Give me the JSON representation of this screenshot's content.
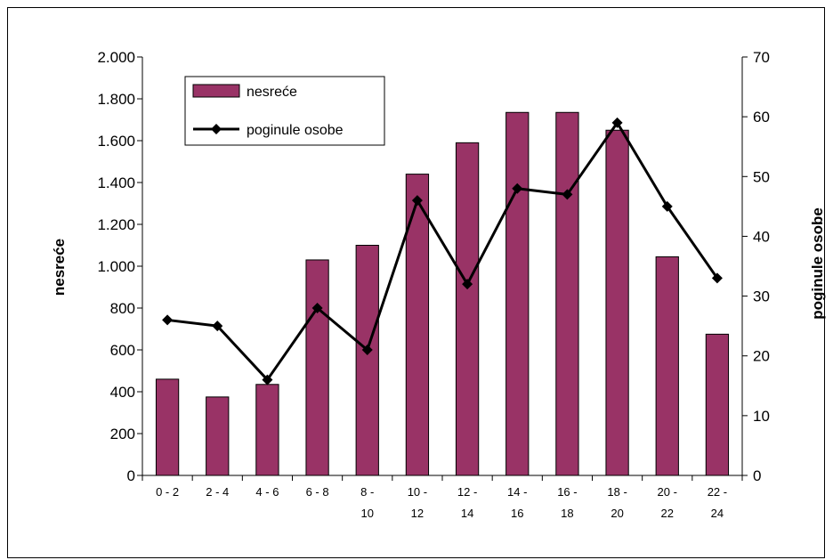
{
  "chart_data": {
    "type": "bar",
    "categories": [
      [
        "0 - 2",
        ""
      ],
      [
        "2 - 4",
        ""
      ],
      [
        "4 - 6",
        ""
      ],
      [
        "6 - 8",
        ""
      ],
      [
        "8 -",
        "10"
      ],
      [
        "10 -",
        "12"
      ],
      [
        "12 -",
        "14"
      ],
      [
        "14 -",
        "16"
      ],
      [
        "16 -",
        "18"
      ],
      [
        "18 -",
        "20"
      ],
      [
        "20 -",
        "22"
      ],
      [
        "22 -",
        "24"
      ]
    ],
    "series": [
      {
        "name": "nesreće",
        "type": "bar",
        "axis": "left",
        "color": "#993366",
        "values": [
          460,
          375,
          435,
          1030,
          1100,
          1440,
          1590,
          1735,
          1735,
          1650,
          1045,
          675
        ]
      },
      {
        "name": "poginule osobe",
        "type": "line",
        "axis": "right",
        "color": "#000000",
        "values": [
          26,
          25,
          16,
          28,
          21,
          46,
          32,
          48,
          47,
          59,
          45,
          33
        ]
      }
    ],
    "ylabel": "nesreće",
    "y2label": "poginule osobe",
    "ylim": [
      0,
      2000
    ],
    "y2lim": [
      0,
      70
    ],
    "yticks": [
      {
        "value": 0,
        "label": "0"
      },
      {
        "value": 200,
        "label": "200"
      },
      {
        "value": 400,
        "label": "400"
      },
      {
        "value": 600,
        "label": "600"
      },
      {
        "value": 800,
        "label": "800"
      },
      {
        "value": 1000,
        "label": "1.000"
      },
      {
        "value": 1200,
        "label": "1.200"
      },
      {
        "value": 1400,
        "label": "1.400"
      },
      {
        "value": 1600,
        "label": "1.600"
      },
      {
        "value": 1800,
        "label": "1.800"
      },
      {
        "value": 2000,
        "label": "2.000"
      }
    ],
    "y2ticks": [
      {
        "value": 0,
        "label": "0"
      },
      {
        "value": 10,
        "label": "10"
      },
      {
        "value": 20,
        "label": "20"
      },
      {
        "value": 30,
        "label": "30"
      },
      {
        "value": 40,
        "label": "40"
      },
      {
        "value": 50,
        "label": "50"
      },
      {
        "value": 60,
        "label": "60"
      },
      {
        "value": 70,
        "label": "70"
      }
    ],
    "grid": false,
    "legend_position": "top-left"
  }
}
